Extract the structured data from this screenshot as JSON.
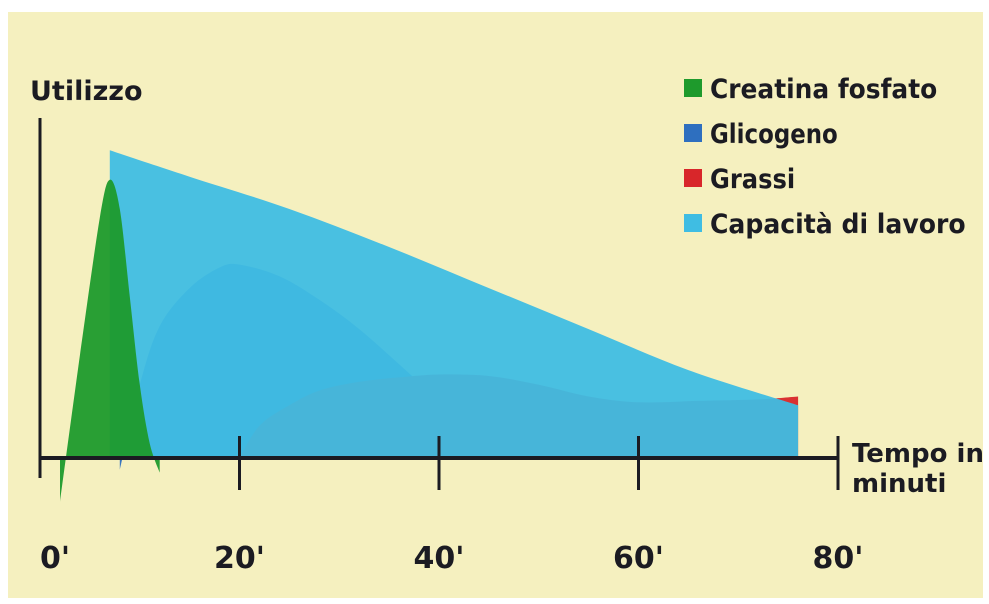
{
  "chart_data": {
    "type": "area",
    "ylabel": "Utilizzo",
    "xlabel_line1": "Tempo in",
    "xlabel_line2": "minuti",
    "x_ticks": [
      "0'",
      "20'",
      "40'",
      "60'",
      "80'"
    ],
    "xlim": [
      0,
      80
    ],
    "ylim": [
      0,
      100
    ],
    "grid": false,
    "legend_position": "top-right",
    "background_color": "#f5f0bf",
    "series": [
      {
        "name": "Creatina fosfato",
        "color": "#1e9a2c",
        "x": [
          2,
          4,
          6,
          7,
          8,
          9,
          10,
          11,
          12
        ],
        "y": [
          -15,
          35,
          82,
          95,
          85,
          55,
          25,
          5,
          -5
        ]
      },
      {
        "name": "Glicogeno",
        "color": "#2e6fbf",
        "x": [
          8,
          10,
          12,
          15,
          18,
          20,
          24,
          28,
          32,
          36,
          40,
          44,
          50,
          56,
          62,
          70
        ],
        "y": [
          -4,
          25,
          45,
          58,
          65,
          66,
          62,
          54,
          44,
          32,
          20,
          11,
          6,
          3,
          1,
          0
        ]
      },
      {
        "name": "Grassi",
        "color": "#d8262a",
        "x": [
          20,
          22,
          25,
          28,
          32,
          36,
          40,
          45,
          50,
          55,
          60,
          66,
          72,
          76
        ],
        "y": [
          0,
          11,
          18,
          23,
          26,
          27.5,
          28.5,
          28,
          25,
          21,
          19,
          19.5,
          20,
          21
        ]
      },
      {
        "name": "Capacità di lavoro",
        "color": "#3fbde3",
        "x": [
          7,
          15,
          25,
          35,
          45,
          55,
          65,
          76
        ],
        "y": [
          105,
          96,
          85,
          72,
          58,
          44,
          30,
          18
        ]
      }
    ]
  }
}
